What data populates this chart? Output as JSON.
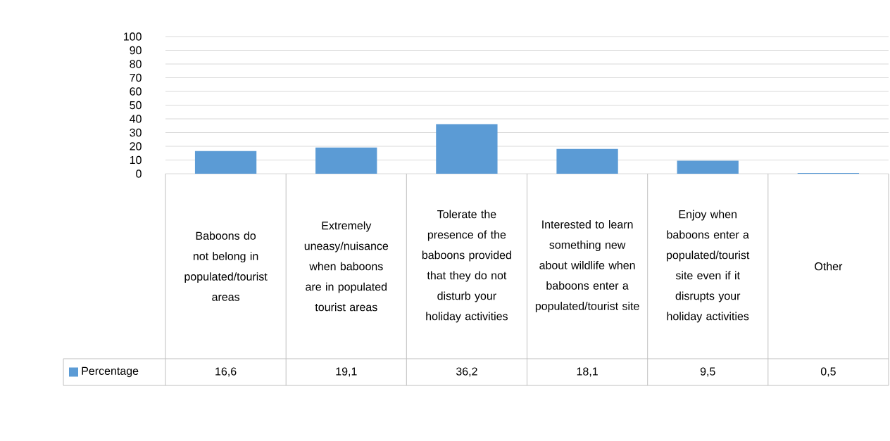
{
  "chart_data": {
    "type": "bar",
    "categories": [
      "Baboons do not belong in populated/tourist areas",
      "Extremely uneasy/nuisance when baboons are in populated tourist areas",
      "Tolerate the presence of the baboons provided that they do not disturb your holiday activities",
      "Interested to learn something new about wildlife when baboons enter a populated/tourist site",
      "Enjoy when baboons enter a populated/tourist site even if it disrupts your holiday activities",
      "Other"
    ],
    "series": [
      {
        "name": "Percentage",
        "color": "#5b9bd5",
        "values": [
          16.6,
          19.1,
          36.2,
          18.1,
          9.5,
          0.5
        ],
        "value_labels": [
          "16,6",
          "19,1",
          "36,2",
          "18,1",
          "9,5",
          "0,5"
        ]
      }
    ],
    "ylim": [
      0,
      100
    ],
    "yticks": [
      0,
      10,
      20,
      30,
      40,
      50,
      60,
      70,
      80,
      90,
      100
    ],
    "grid": "y"
  }
}
